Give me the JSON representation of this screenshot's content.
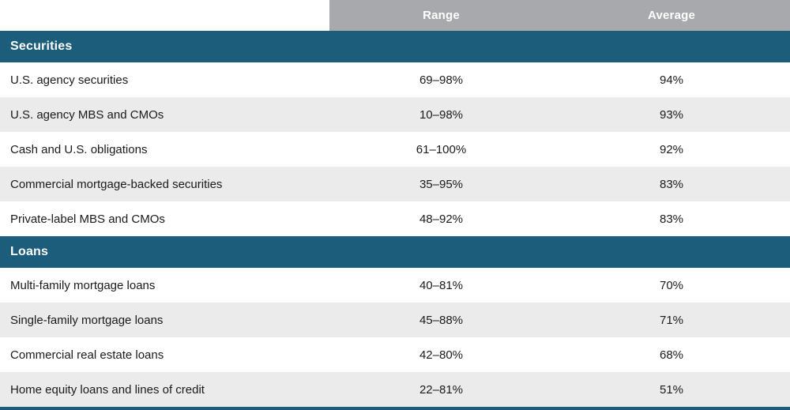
{
  "colors": {
    "teal": "#1c5d7c",
    "header-gray": "#a7a9ac",
    "row-alt": "#ebebeb",
    "text": "#1a1a1a",
    "text-on-dark": "#ffffff"
  },
  "header": {
    "range": "Range",
    "average": "Average"
  },
  "sections": [
    {
      "label": "Securities",
      "rows": [
        {
          "label": "U.S. agency securities",
          "range": "69–98%",
          "average": "94%"
        },
        {
          "label": "U.S. agency MBS and CMOs",
          "range": "10–98%",
          "average": "93%"
        },
        {
          "label": "Cash and U.S. obligations",
          "range": "61–100%",
          "average": "92%"
        },
        {
          "label": "Commercial mortgage-backed securities",
          "range": "35–95%",
          "average": "83%"
        },
        {
          "label": "Private-label MBS and CMOs",
          "range": "48–92%",
          "average": "83%"
        }
      ]
    },
    {
      "label": "Loans",
      "rows": [
        {
          "label": "Multi-family mortgage loans",
          "range": "40–81%",
          "average": "70%"
        },
        {
          "label": "Single-family mortgage loans",
          "range": "45–88%",
          "average": "71%"
        },
        {
          "label": "Commercial real estate loans",
          "range": "42–80%",
          "average": "68%"
        },
        {
          "label": "Home equity loans and lines of credit",
          "range": "22–81%",
          "average": "51%"
        }
      ]
    }
  ]
}
